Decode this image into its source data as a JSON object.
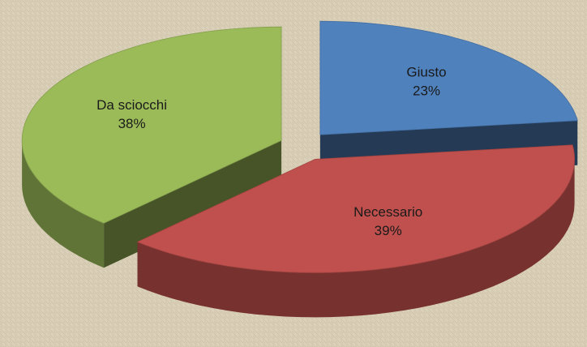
{
  "chart_data": {
    "type": "pie",
    "categories": [
      "Giusto",
      "Necessario",
      "Da sciocchi"
    ],
    "values": [
      23,
      39,
      38
    ],
    "value_labels": [
      "23%",
      "39%",
      "38%"
    ],
    "colors": [
      "#4f81bd",
      "#c0504d",
      "#9bbb59"
    ]
  }
}
